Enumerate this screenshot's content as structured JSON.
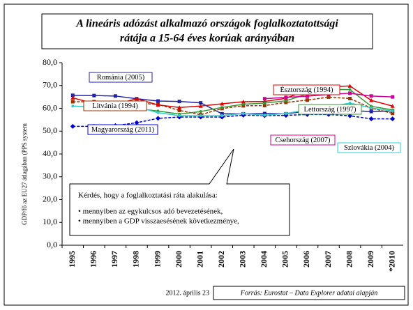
{
  "chart_data": {
    "type": "line",
    "title_lines": [
      "A lineáris adózást alkalmazó országok foglalkoztatottsági",
      "rátája a 15-64 éves korúak arányában"
    ],
    "y_label": "GDP/fő az EU27 átlagában (PPS system",
    "categories": [
      "1995",
      "1996",
      "1997",
      "1998",
      "1999",
      "2000",
      "2001",
      "2002",
      "2003",
      "2004",
      "2005",
      "2006",
      "2007",
      "2008",
      "2009",
      "*2010"
    ],
    "ylim": [
      0,
      80
    ],
    "yticks": [
      {
        "value": 0,
        "label": "0,0"
      },
      {
        "value": 10,
        "label": "10,0"
      },
      {
        "value": 20,
        "label": "20,0"
      },
      {
        "value": 30,
        "label": "30,0"
      },
      {
        "value": 40,
        "label": "40,0"
      },
      {
        "value": 50,
        "label": "50,0"
      },
      {
        "value": 60,
        "label": "60,0"
      },
      {
        "value": 70,
        "label": "70,0"
      },
      {
        "value": 80,
        "label": "80,0"
      }
    ],
    "series": [
      {
        "name": "Románia (2005)",
        "color": "#2222aa",
        "dashed": false,
        "values": [
          65.7,
          65.6,
          65.4,
          64.2,
          63.2,
          63.0,
          62.4,
          57.6,
          57.6,
          57.7,
          57.6,
          58.8,
          58.8,
          59.0,
          58.6,
          58.8
        ]
      },
      {
        "name": "Litvánia (1994)",
        "color": "#993300",
        "dashed": true,
        "values": [
          62.9,
          62.9,
          62.3,
          62.3,
          61.7,
          59.1,
          57.2,
          59.9,
          61.1,
          61.2,
          62.6,
          63.6,
          64.9,
          64.3,
          60.1,
          57.8
        ]
      },
      {
        "name": "Magyarország (2011)",
        "color": "#0000cc",
        "dashed": true,
        "values": [
          52.1,
          52.1,
          52.4,
          53.7,
          55.6,
          56.2,
          56.2,
          56.2,
          57.0,
          56.8,
          56.9,
          57.3,
          57.3,
          56.7,
          55.4,
          55.4
        ]
      },
      {
        "name": "Észtország (1994)",
        "color": "#dd0000",
        "dashed": false,
        "values": [
          64.6,
          62.1,
          61.8,
          64.2,
          61.5,
          60.4,
          61.0,
          62.0,
          62.9,
          63.0,
          64.4,
          68.1,
          69.4,
          69.8,
          63.5,
          61.0
        ]
      },
      {
        "name": "Lettország (1997)",
        "color": "#339933",
        "dashed": false,
        "values": [
          null,
          null,
          null,
          59.9,
          58.8,
          57.5,
          58.6,
          60.4,
          61.8,
          62.3,
          63.3,
          66.3,
          68.3,
          68.2,
          60.9,
          59.3
        ]
      },
      {
        "name": "Csehország (2007)",
        "color": "#cc0099",
        "dashed": false,
        "values": [
          null,
          null,
          null,
          null,
          null,
          null,
          null,
          null,
          null,
          64.2,
          64.8,
          65.3,
          66.1,
          66.6,
          65.4,
          65.0
        ]
      },
      {
        "name": "Szlovákia (2004)",
        "color": "#33cccc",
        "dashed": false,
        "values": [
          61.0,
          60.6,
          60.9,
          60.6,
          58.1,
          56.8,
          56.8,
          56.8,
          57.7,
          57.0,
          57.7,
          59.4,
          60.7,
          62.3,
          60.2,
          58.8
        ]
      }
    ],
    "callout": [
      "Kérdés, hogy a foglalkoztatási ráta alakulása:",
      "• mennyiben az egykulcsos adó bevezetésének,",
      "• mennyiben a GDP visszaesésének  következménye,"
    ],
    "date": "2012. április 23",
    "source": "Forrás: Eurostat – Data Explorer adatai alapján"
  }
}
